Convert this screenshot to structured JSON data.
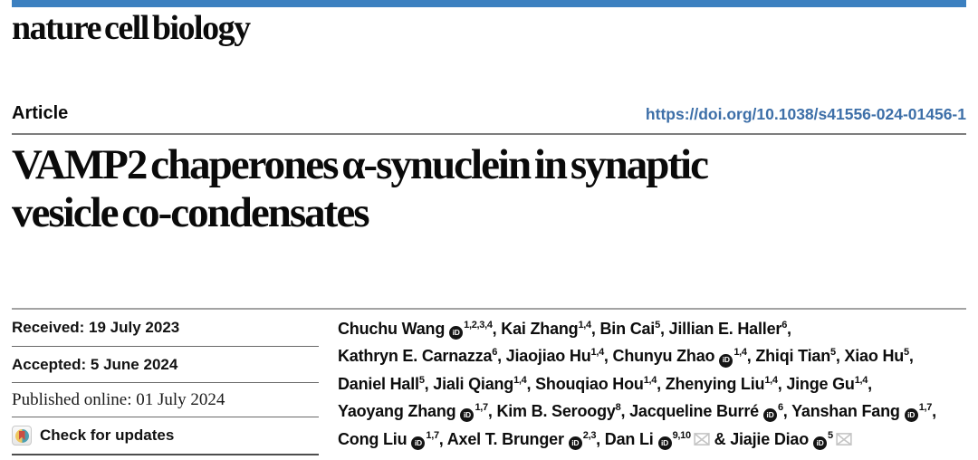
{
  "masthead": {
    "journal": "nature cell biology"
  },
  "header": {
    "article_label": "Article",
    "doi": "https://doi.org/10.1038/s41556-024-01456-1"
  },
  "title": {
    "lines": [
      "VAMP2 chaperones α-synuclein in synaptic",
      "vesicle co-condensates"
    ]
  },
  "metadata": {
    "received": "Received: 19 July 2023",
    "accepted": "Accepted: 5 June 2024",
    "published": "Published online: 01 July 2024",
    "check_updates": "Check for updates"
  },
  "icons": {
    "orcid": "orcid-id-badge",
    "envelope": "corresponding-author-envelope",
    "crossmark": "crossmark-check-for-updates-badge"
  },
  "colors": {
    "top_bar": "#3C80C0",
    "doi_link": "#3D6FA8",
    "crossmark_teal": "#4B9FB1",
    "crossmark_yellow": "#EFC75E",
    "crossmark_red": "#C94F43",
    "orcid_badge": "#141414"
  },
  "authors": {
    "orcid_glyph": "iD",
    "lines": [
      [
        {
          "t": "text",
          "v": "Chuchu Wang"
        },
        {
          "t": "orcid"
        },
        {
          "t": "sup",
          "v": "1,2,3,4"
        },
        {
          "t": "text",
          "v": ", Kai Zhang"
        },
        {
          "t": "sup",
          "v": "1,4"
        },
        {
          "t": "text",
          "v": ", Bin Cai"
        },
        {
          "t": "sup",
          "v": "5"
        },
        {
          "t": "text",
          "v": ", Jillian E. Haller"
        },
        {
          "t": "sup",
          "v": "6"
        },
        {
          "t": "text",
          "v": ","
        }
      ],
      [
        {
          "t": "text",
          "v": "Kathryn E. Carnazza"
        },
        {
          "t": "sup",
          "v": "6"
        },
        {
          "t": "text",
          "v": ", Jiaojiao Hu"
        },
        {
          "t": "sup",
          "v": "1,4"
        },
        {
          "t": "text",
          "v": ", Chunyu Zhao"
        },
        {
          "t": "orcid"
        },
        {
          "t": "sup",
          "v": "1,4"
        },
        {
          "t": "text",
          "v": ", Zhiqi Tian"
        },
        {
          "t": "sup",
          "v": "5"
        },
        {
          "t": "text",
          "v": ", Xiao Hu"
        },
        {
          "t": "sup",
          "v": "5"
        },
        {
          "t": "text",
          "v": ","
        }
      ],
      [
        {
          "t": "text",
          "v": "Daniel Hall"
        },
        {
          "t": "sup",
          "v": "5"
        },
        {
          "t": "text",
          "v": ", Jiali Qiang"
        },
        {
          "t": "sup",
          "v": "1,4"
        },
        {
          "t": "text",
          "v": ", Shouqiao Hou"
        },
        {
          "t": "sup",
          "v": "1,4"
        },
        {
          "t": "text",
          "v": ", Zhenying Liu"
        },
        {
          "t": "sup",
          "v": "1,4"
        },
        {
          "t": "text",
          "v": ", Jinge Gu"
        },
        {
          "t": "sup",
          "v": "1,4"
        },
        {
          "t": "text",
          "v": ","
        }
      ],
      [
        {
          "t": "text",
          "v": "Yaoyang Zhang"
        },
        {
          "t": "orcid"
        },
        {
          "t": "sup",
          "v": "1,7"
        },
        {
          "t": "text",
          "v": ", Kim B. Seroogy"
        },
        {
          "t": "sup",
          "v": "8"
        },
        {
          "t": "text",
          "v": ", Jacqueline Burré"
        },
        {
          "t": "orcid"
        },
        {
          "t": "sup",
          "v": "6"
        },
        {
          "t": "text",
          "v": ", Yanshan Fang"
        },
        {
          "t": "orcid"
        },
        {
          "t": "sup",
          "v": "1,7"
        },
        {
          "t": "text",
          "v": ","
        }
      ],
      [
        {
          "t": "text",
          "v": "Cong Liu"
        },
        {
          "t": "orcid"
        },
        {
          "t": "sup",
          "v": "1,7"
        },
        {
          "t": "text",
          "v": ", Axel T. Brunger"
        },
        {
          "t": "orcid"
        },
        {
          "t": "sup",
          "v": "2,3"
        },
        {
          "t": "text",
          "v": ", Dan Li"
        },
        {
          "t": "orcid"
        },
        {
          "t": "sup",
          "v": "9,10"
        },
        {
          "t": "env"
        },
        {
          "t": "text",
          "v": " & Jiajie Diao"
        },
        {
          "t": "orcid"
        },
        {
          "t": "sup",
          "v": "5"
        },
        {
          "t": "env"
        }
      ]
    ]
  }
}
